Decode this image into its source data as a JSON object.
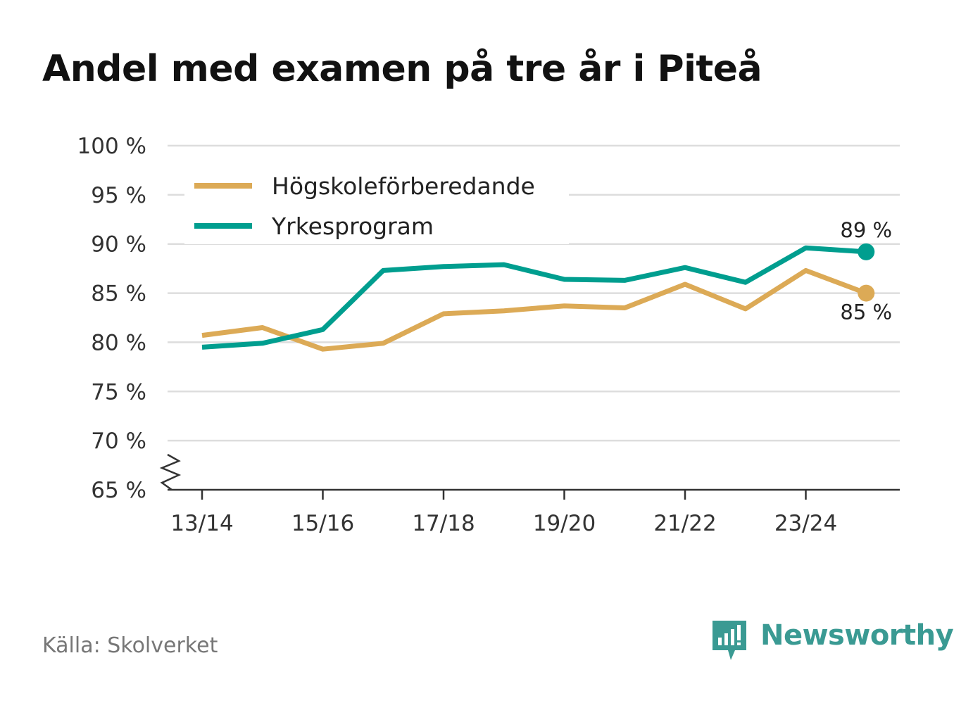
{
  "header": {
    "title": "Andel med examen på tre år i Piteå"
  },
  "chart_data": {
    "type": "line",
    "title": "Andel med examen på tre år i Piteå",
    "xlabel": "",
    "ylabel": "",
    "ylim": [
      65,
      100
    ],
    "yticks": [
      "100 %",
      "95 %",
      "90 %",
      "85 %",
      "80 %",
      "75 %",
      "70 %",
      "65 %"
    ],
    "ytick_values": [
      100,
      95,
      90,
      85,
      80,
      75,
      70,
      65
    ],
    "categories": [
      "13/14",
      "14/15",
      "15/16",
      "16/17",
      "17/18",
      "18/19",
      "19/20",
      "20/21",
      "21/22",
      "22/23",
      "23/24",
      "24/25"
    ],
    "xtick_labels": [
      "13/14",
      "15/16",
      "17/18",
      "19/20",
      "21/22",
      "23/24"
    ],
    "axis_break": true,
    "grid": true,
    "legend": "top-left",
    "series": [
      {
        "name": "Högskoleförberedande",
        "color": "#dcaa56",
        "values": [
          80.7,
          81.5,
          79.3,
          79.9,
          82.9,
          83.2,
          83.7,
          83.5,
          85.9,
          83.4,
          87.3,
          85.0
        ],
        "end_label": "85 %"
      },
      {
        "name": "Yrkesprogram",
        "color": "#009e8f",
        "values": [
          79.5,
          79.9,
          81.3,
          87.3,
          87.7,
          87.9,
          86.4,
          86.3,
          87.6,
          86.1,
          89.6,
          89.2
        ],
        "end_label": "89 %"
      }
    ]
  },
  "footer": {
    "source": "Källa: Skolverket",
    "brand": "Newsworthy",
    "brand_color": "#3a9a93"
  }
}
